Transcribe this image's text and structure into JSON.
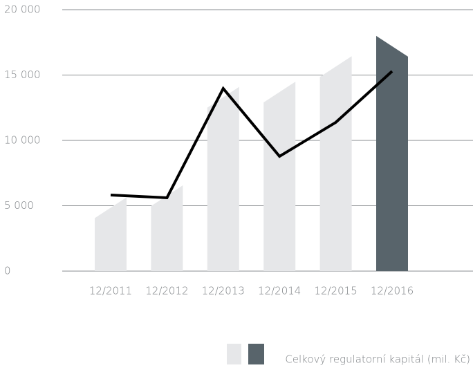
{
  "chart_data": {
    "type": "bar-line",
    "categories": [
      "12/2011",
      "12/2012",
      "12/2013",
      "12/2014",
      "12/2015",
      "12/2016"
    ],
    "series": [
      {
        "name": "Celkový regulatorní kapitál (mil. Kč)",
        "type": "bar",
        "color": "#e6e7e9",
        "highlight_color": "#58646b",
        "highlight_index": 5,
        "values": [
          4850,
          5770,
          13300,
          13700,
          15650,
          17200
        ]
      },
      {
        "type": "line",
        "color": "#000000",
        "values": [
          5820,
          5610,
          13970,
          8780,
          11380,
          15290
        ]
      }
    ],
    "ylim": [
      0,
      20000
    ],
    "yticks": [
      0,
      {
        "value": 5000,
        "label": "5 000"
      },
      {
        "value": 10000,
        "label": "10 000"
      },
      {
        "value": 15000,
        "label": "15 000"
      },
      {
        "value": 20000,
        "label": "20 000"
      }
    ],
    "grid": true
  }
}
